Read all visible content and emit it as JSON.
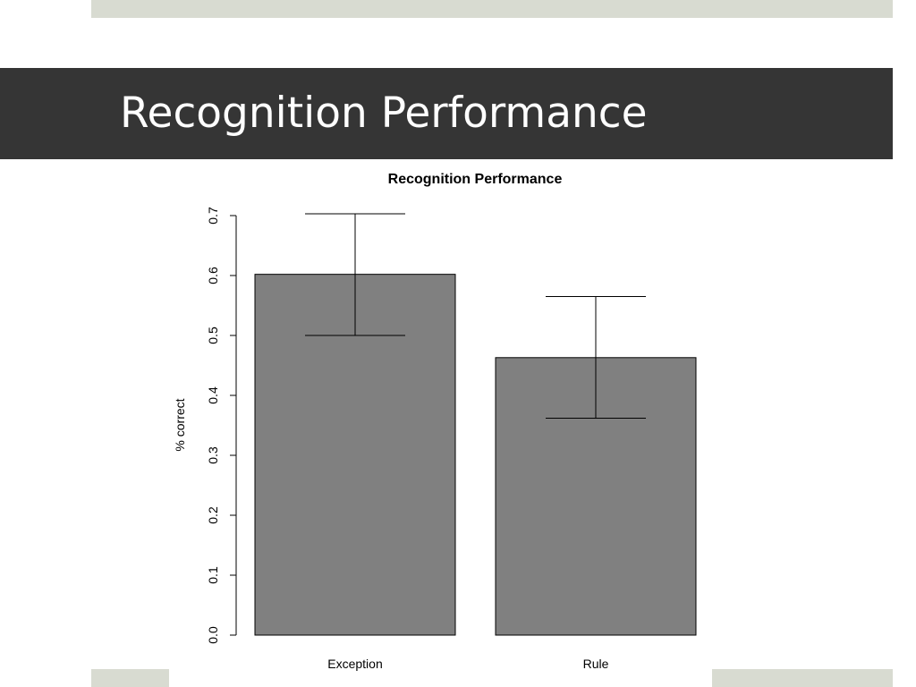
{
  "slide": {
    "title": "Recognition Performance"
  },
  "colors": {
    "title_band": "#353535",
    "accent_strip": "#d8dbd1",
    "bar_fill": "#808080"
  },
  "chart_data": {
    "type": "bar",
    "title": "Recognition Performance",
    "xlabel": "",
    "ylabel": "% correct",
    "categories": [
      "Exception",
      "Rule"
    ],
    "values": [
      0.602,
      0.463
    ],
    "error_low": [
      0.5,
      0.362
    ],
    "error_high": [
      0.703,
      0.565
    ],
    "ylim": [
      0,
      0.7
    ],
    "yticks": [
      "0.0",
      "0.1",
      "0.2",
      "0.3",
      "0.4",
      "0.5",
      "0.6",
      "0.7"
    ],
    "grid": false,
    "legend": "none"
  }
}
